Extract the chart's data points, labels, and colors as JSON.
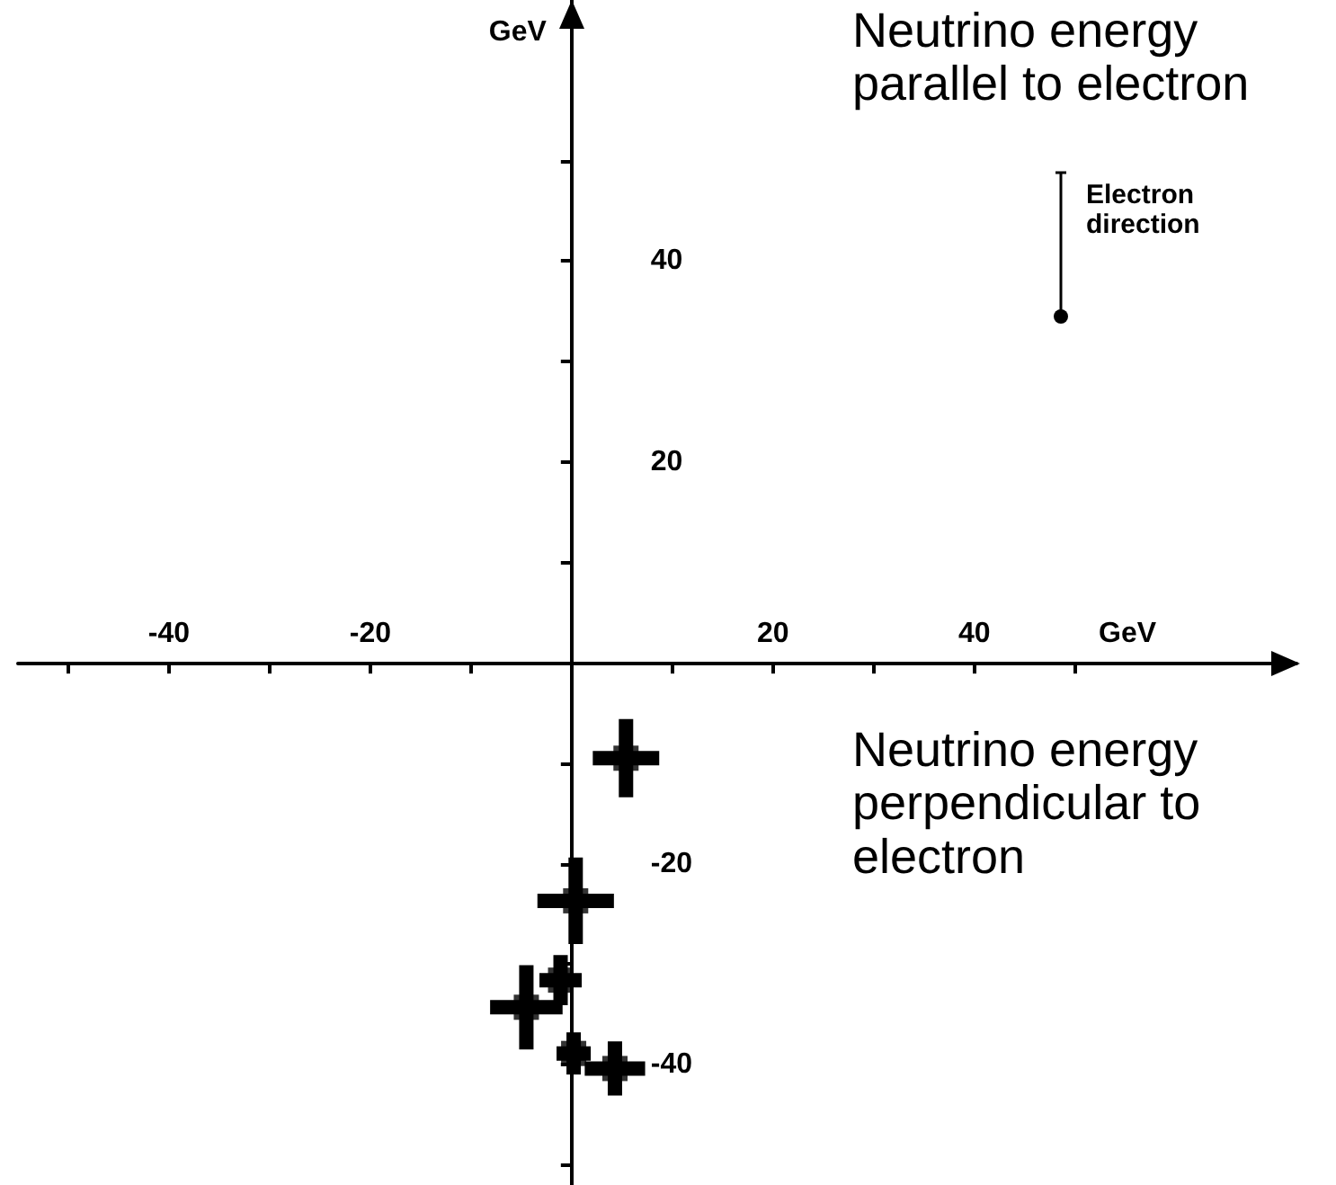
{
  "chart_data": {
    "type": "scatter",
    "xlabel": "GeV",
    "ylabel": "GeV",
    "annotations": [
      "Neutrino energy\nparallel to electron",
      "Neutrino energy\nperpendicular to\nelectron",
      "Electron\ndirection"
    ],
    "x": [
      5.4,
      0.4,
      -1.1,
      -4.5,
      0.2,
      4.3
    ],
    "series": [
      {
        "color": "#000000",
        "values": [
          -9.5,
          -23.7,
          -31.6,
          -34.3,
          -38.9,
          -40.4
        ],
        "errors": [
          3.9,
          4.3,
          2.5,
          4.2,
          2.1,
          2.7
        ],
        "xerrors": [
          3.3,
          3.8,
          2.1,
          3.6,
          1.7,
          3.0
        ]
      }
    ],
    "xlim": [
      -55,
      72
    ],
    "ylim": [
      -52,
      66
    ],
    "xticks": [
      {
        "value": -50,
        "label": null
      },
      -40,
      {
        "value": -30,
        "label": null
      },
      -20,
      {
        "value": -10,
        "label": null
      },
      {
        "value": 10,
        "label": null
      },
      20,
      {
        "value": 30,
        "label": null
      },
      40,
      {
        "value": 50,
        "label": null
      }
    ],
    "yticks": [
      {
        "value": -50,
        "label": null
      },
      -40,
      {
        "value": -30,
        "label": null
      },
      -20,
      {
        "value": -10,
        "label": null
      },
      {
        "value": 10,
        "label": null
      },
      20,
      {
        "value": 30,
        "label": null
      },
      40,
      {
        "value": 50,
        "label": null
      }
    ],
    "grid": false,
    "marker": "square"
  }
}
